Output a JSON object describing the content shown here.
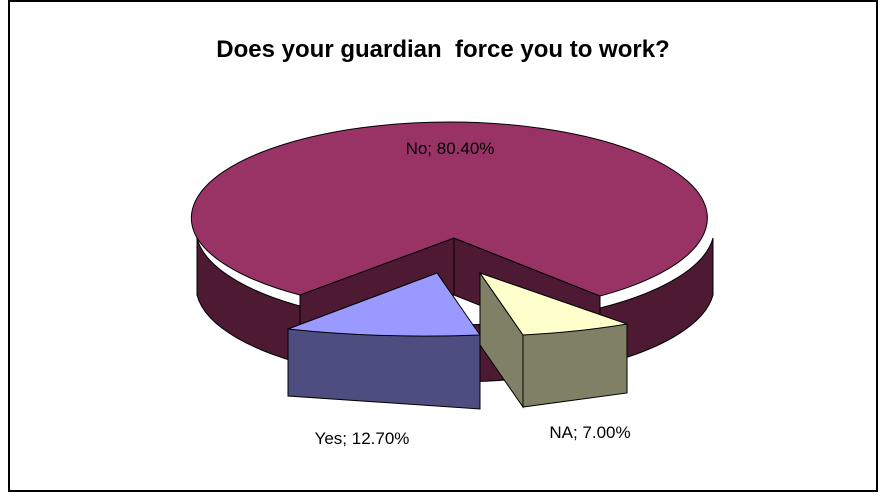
{
  "chart_data": {
    "type": "pie",
    "title": "Does your guardian  force you to work?",
    "style": "3d-exploded",
    "slices": [
      {
        "name": "No",
        "value": 80.4,
        "display": "No; 80.40%",
        "top_color": "#993366",
        "side_color": "#4d1933"
      },
      {
        "name": "Yes",
        "value": 12.7,
        "display": "Yes; 12.70%",
        "top_color": "#9999ff",
        "side_color": "#4d4d80"
      },
      {
        "name": "NA",
        "value": 7.0,
        "display": "NA; 7.00%",
        "top_color": "#ffffcc",
        "side_color": "#808066"
      }
    ],
    "legend": "none"
  }
}
